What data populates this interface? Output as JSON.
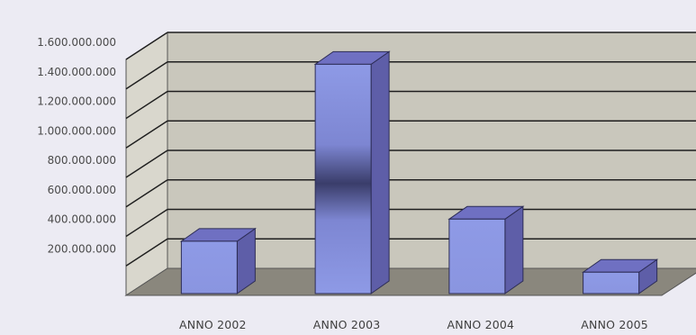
{
  "chart_data": {
    "type": "bar",
    "style": "3d-column",
    "title": "",
    "xlabel": "",
    "ylabel": "",
    "categories": [
      "ANNO 2002",
      "ANNO 2003",
      "ANNO 2004",
      "ANNO 2005"
    ],
    "values": [
      355000000,
      1555000000,
      505000000,
      145000000
    ],
    "ylim": [
      0,
      1600000000
    ],
    "yticks": [
      0,
      200000000,
      400000000,
      600000000,
      800000000,
      1000000000,
      1200000000,
      1400000000,
      1600000000
    ],
    "ytick_labels": [
      "",
      "200.000.000",
      "400.000.000",
      "600.000.000",
      "800.000.000",
      "1.000.000.000",
      "1.200.000.000",
      "1.400.000.000",
      "1.600.000.000"
    ],
    "grid": true,
    "legend": "none"
  },
  "colors": {
    "background": "#ecebf3",
    "back_wall": "#c9c7bc",
    "side_wall": "#d9d7cd",
    "floor": "#8a877d",
    "grid_line": "#1e1e1e",
    "bar_front": "#8e9ae6",
    "bar_top": "#6f70c2",
    "bar_side": "#5e5ea8",
    "tick_text": "#4a4a4a",
    "category_text": "#3f3f3f"
  }
}
